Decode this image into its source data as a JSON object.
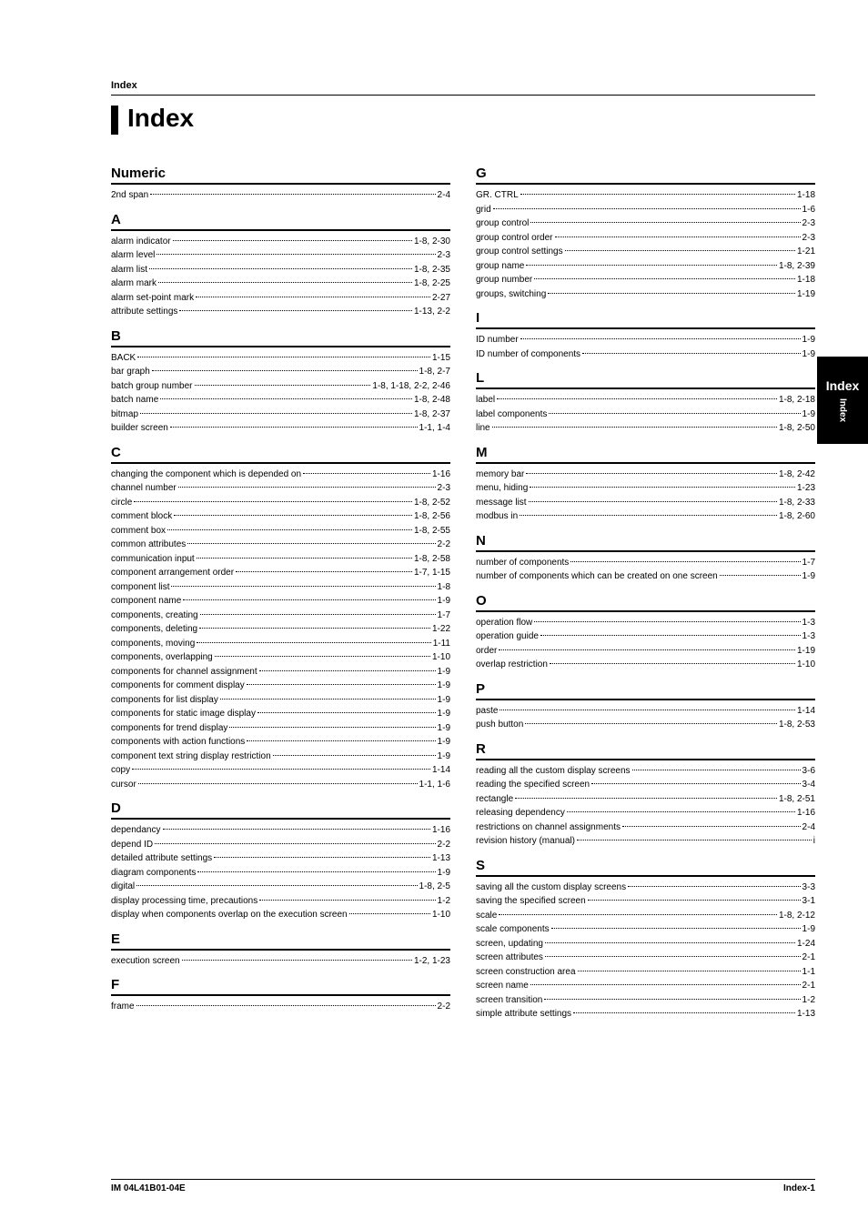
{
  "header": {
    "section_label": "Index",
    "title": "Index"
  },
  "side_tab": {
    "main": "Index",
    "sub": "Index"
  },
  "footer": {
    "left": "IM 04L41B01-04E",
    "right": "Index-1"
  },
  "left_sections": [
    {
      "letter": "Numeric",
      "entries": [
        {
          "term": "2nd span",
          "pages": "2-4"
        }
      ]
    },
    {
      "letter": "A",
      "entries": [
        {
          "term": "alarm indicator",
          "pages": "1-8, 2-30"
        },
        {
          "term": "alarm level",
          "pages": "2-3"
        },
        {
          "term": "alarm list",
          "pages": "1-8, 2-35"
        },
        {
          "term": "alarm mark",
          "pages": "1-8, 2-25"
        },
        {
          "term": "alarm set-point mark",
          "pages": "2-27"
        },
        {
          "term": "attribute settings",
          "pages": "1-13, 2-2"
        }
      ]
    },
    {
      "letter": "B",
      "entries": [
        {
          "term": "BACK",
          "pages": "1-15"
        },
        {
          "term": "bar graph",
          "pages": "1-8, 2-7"
        },
        {
          "term": "batch group number",
          "pages": "1-8, 1-18, 2-2, 2-46"
        },
        {
          "term": "batch name",
          "pages": "1-8, 2-48"
        },
        {
          "term": "bitmap",
          "pages": "1-8, 2-37"
        },
        {
          "term": "builder screen",
          "pages": "1-1, 1-4"
        }
      ]
    },
    {
      "letter": "C",
      "entries": [
        {
          "term": "changing the component which is depended on",
          "pages": "1-16"
        },
        {
          "term": "channel number",
          "pages": "2-3"
        },
        {
          "term": "circle",
          "pages": "1-8, 2-52"
        },
        {
          "term": "comment block",
          "pages": "1-8, 2-56"
        },
        {
          "term": "comment box",
          "pages": "1-8, 2-55"
        },
        {
          "term": "common attributes",
          "pages": "2-2"
        },
        {
          "term": "communication input",
          "pages": "1-8, 2-58"
        },
        {
          "term": "component arrangement order",
          "pages": "1-7, 1-15"
        },
        {
          "term": "component list",
          "pages": "1-8"
        },
        {
          "term": "component name",
          "pages": "1-9"
        },
        {
          "term": "components, creating",
          "pages": "1-7"
        },
        {
          "term": "components, deleting",
          "pages": "1-22"
        },
        {
          "term": "components, moving",
          "pages": "1-11"
        },
        {
          "term": "components, overlapping",
          "pages": "1-10"
        },
        {
          "term": "components for channel assignment",
          "pages": "1-9"
        },
        {
          "term": "components for comment display",
          "pages": "1-9"
        },
        {
          "term": "components for list display",
          "pages": "1-9"
        },
        {
          "term": "components for static image display",
          "pages": "1-9"
        },
        {
          "term": "components for trend display",
          "pages": "1-9"
        },
        {
          "term": "components with action functions",
          "pages": "1-9"
        },
        {
          "term": "component text string display restriction",
          "pages": "1-9"
        },
        {
          "term": "copy",
          "pages": "1-14"
        },
        {
          "term": "cursor",
          "pages": "1-1, 1-6"
        }
      ]
    },
    {
      "letter": "D",
      "entries": [
        {
          "term": "dependancy",
          "pages": "1-16"
        },
        {
          "term": "depend ID",
          "pages": "2-2"
        },
        {
          "term": "detailed attribute settings",
          "pages": "1-13"
        },
        {
          "term": "diagram components",
          "pages": "1-9"
        },
        {
          "term": "digital",
          "pages": "1-8, 2-5"
        },
        {
          "term": "display processing time, precautions",
          "pages": "1-2"
        },
        {
          "term": "display when components overlap on the execution screen",
          "pages": "1-10"
        }
      ]
    },
    {
      "letter": "E",
      "entries": [
        {
          "term": "execution screen",
          "pages": "1-2, 1-23"
        }
      ]
    },
    {
      "letter": "F",
      "entries": [
        {
          "term": "frame",
          "pages": "2-2"
        }
      ]
    }
  ],
  "right_sections": [
    {
      "letter": "G",
      "entries": [
        {
          "term": "GR. CTRL",
          "pages": "1-18"
        },
        {
          "term": "grid",
          "pages": "1-6"
        },
        {
          "term": "group control",
          "pages": "2-3"
        },
        {
          "term": "group control order",
          "pages": "2-3"
        },
        {
          "term": "group control settings",
          "pages": "1-21"
        },
        {
          "term": "group name",
          "pages": "1-8, 2-39"
        },
        {
          "term": "group number",
          "pages": "1-18"
        },
        {
          "term": "groups, switching",
          "pages": "1-19"
        }
      ]
    },
    {
      "letter": "I",
      "entries": [
        {
          "term": "ID number",
          "pages": "1-9"
        },
        {
          "term": "ID number of components",
          "pages": "1-9"
        }
      ]
    },
    {
      "letter": "L",
      "entries": [
        {
          "term": "label",
          "pages": "1-8, 2-18"
        },
        {
          "term": "label components",
          "pages": "1-9"
        },
        {
          "term": "line",
          "pages": "1-8, 2-50"
        }
      ]
    },
    {
      "letter": "M",
      "entries": [
        {
          "term": "memory bar",
          "pages": "1-8, 2-42"
        },
        {
          "term": "menu, hiding",
          "pages": "1-23"
        },
        {
          "term": "message list",
          "pages": "1-8, 2-33"
        },
        {
          "term": "modbus in",
          "pages": "1-8, 2-60"
        }
      ]
    },
    {
      "letter": "N",
      "entries": [
        {
          "term": "number of components",
          "pages": "1-7"
        },
        {
          "term": "number of components which can be created on one screen",
          "pages": "1-9"
        }
      ]
    },
    {
      "letter": "O",
      "entries": [
        {
          "term": "operation flow",
          "pages": "1-3"
        },
        {
          "term": "operation guide",
          "pages": "1-3"
        },
        {
          "term": "order",
          "pages": "1-19"
        },
        {
          "term": "overlap restriction",
          "pages": "1-10"
        }
      ]
    },
    {
      "letter": "P",
      "entries": [
        {
          "term": "paste",
          "pages": "1-14"
        },
        {
          "term": "push button",
          "pages": "1-8, 2-53"
        }
      ]
    },
    {
      "letter": "R",
      "entries": [
        {
          "term": "reading all the custom display screens",
          "pages": "3-6"
        },
        {
          "term": "reading the specified screen",
          "pages": "3-4"
        },
        {
          "term": "rectangle",
          "pages": "1-8, 2-51"
        },
        {
          "term": "releasing dependency",
          "pages": "1-16"
        },
        {
          "term": "restrictions on channel assignments",
          "pages": "2-4"
        },
        {
          "term": "revision history (manual)",
          "pages": "i"
        }
      ]
    },
    {
      "letter": "S",
      "entries": [
        {
          "term": "saving all the custom display screens",
          "pages": "3-3"
        },
        {
          "term": "saving the specified screen",
          "pages": "3-1"
        },
        {
          "term": "scale",
          "pages": "1-8, 2-12"
        },
        {
          "term": "scale components",
          "pages": "1-9"
        },
        {
          "term": "screen, updating",
          "pages": "1-24"
        },
        {
          "term": "screen attributes",
          "pages": "2-1"
        },
        {
          "term": "screen construction area",
          "pages": "1-1"
        },
        {
          "term": "screen name",
          "pages": "2-1"
        },
        {
          "term": "screen transition",
          "pages": "1-2"
        },
        {
          "term": "simple attribute settings",
          "pages": "1-13"
        }
      ]
    }
  ]
}
